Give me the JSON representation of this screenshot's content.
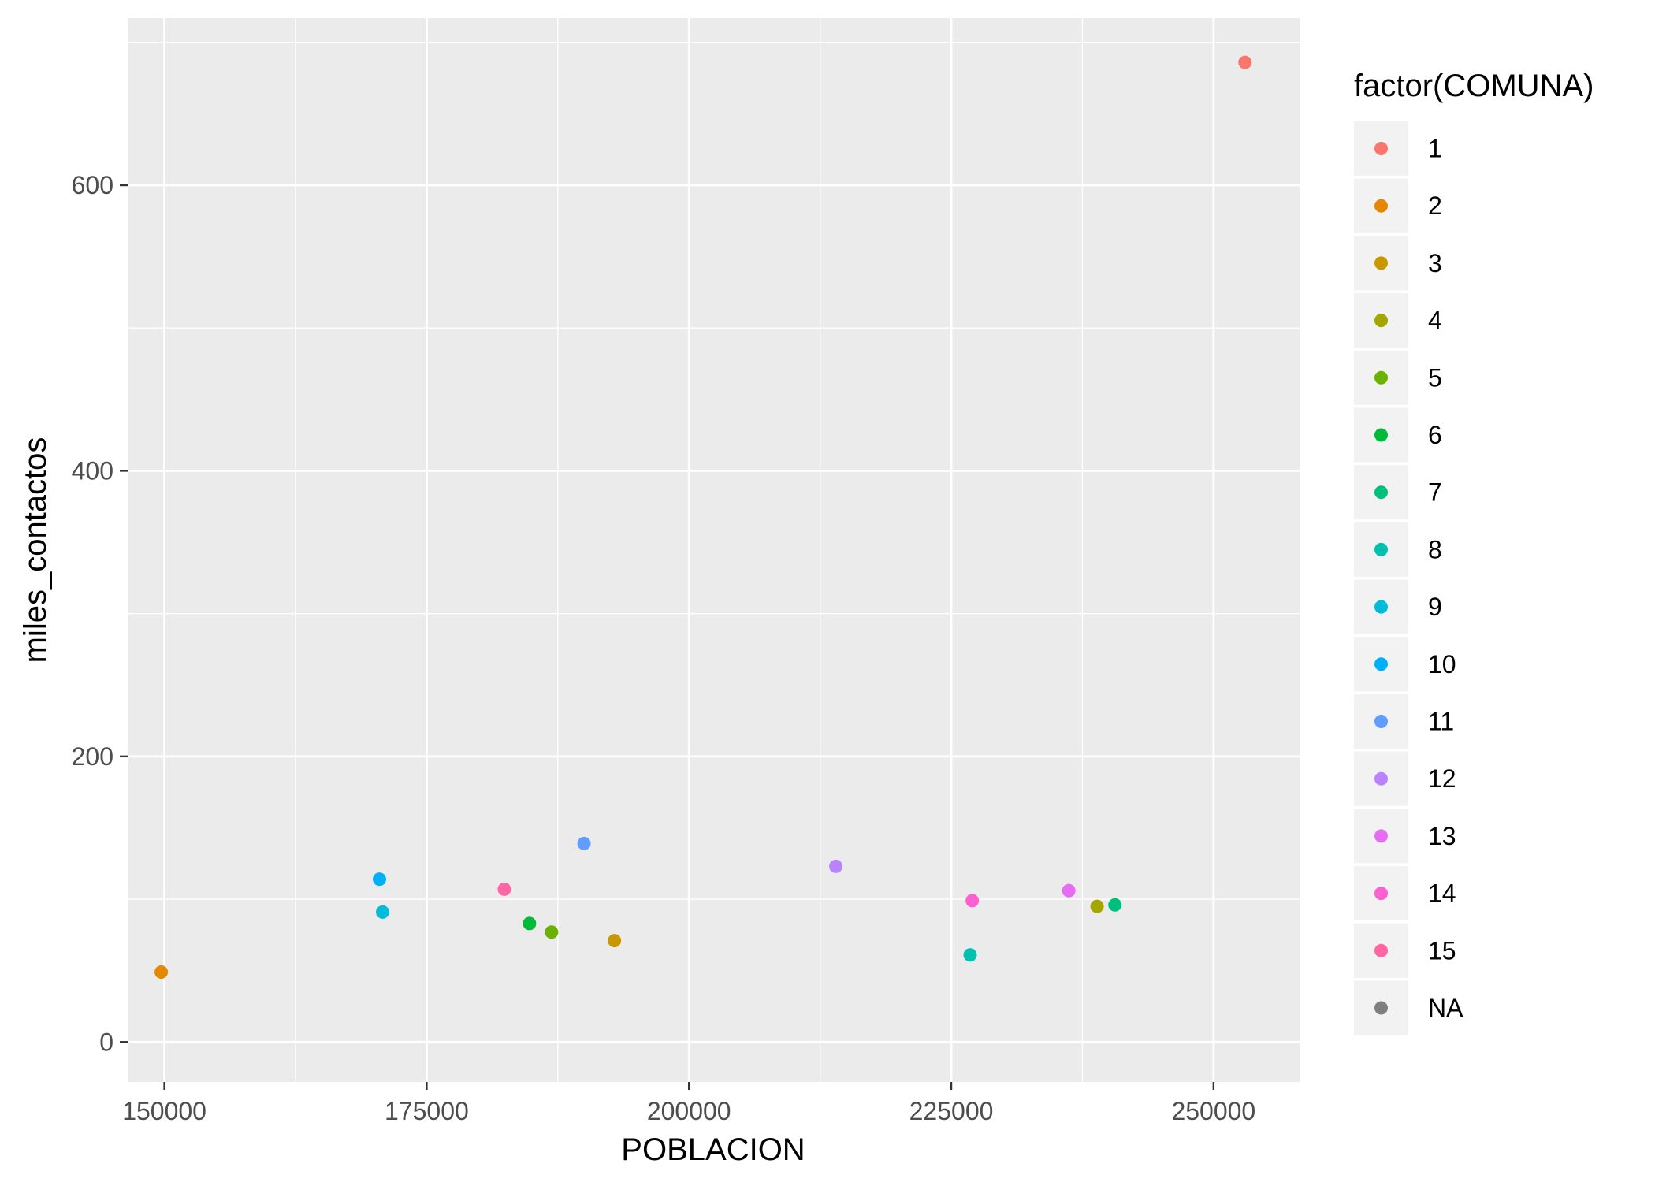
{
  "chart_data": {
    "type": "scatter",
    "title": "",
    "xlabel": "POBLACION",
    "ylabel": "miles_contactos",
    "xlim": [
      146500,
      258200
    ],
    "ylim": [
      -28,
      717
    ],
    "x_ticks": [
      150000,
      175000,
      200000,
      225000,
      250000
    ],
    "x_tick_labels": [
      "150000",
      "175000",
      "200000",
      "225000",
      "250000"
    ],
    "y_ticks": [
      0,
      200,
      400,
      600
    ],
    "y_tick_labels": [
      "0",
      "200",
      "400",
      "600"
    ],
    "grid": true,
    "legend_position": "right",
    "legend": {
      "title": "factor(COMUNA)",
      "entries": [
        {
          "label": "1",
          "color": "#F8766D"
        },
        {
          "label": "2",
          "color": "#E58700"
        },
        {
          "label": "3",
          "color": "#C99800"
        },
        {
          "label": "4",
          "color": "#A3A500"
        },
        {
          "label": "5",
          "color": "#6BB100"
        },
        {
          "label": "6",
          "color": "#00BA38"
        },
        {
          "label": "7",
          "color": "#00BF7D"
        },
        {
          "label": "8",
          "color": "#00C0AF"
        },
        {
          "label": "9",
          "color": "#00BCD8"
        },
        {
          "label": "10",
          "color": "#00B0F6"
        },
        {
          "label": "11",
          "color": "#619CFF"
        },
        {
          "label": "12",
          "color": "#B983FF"
        },
        {
          "label": "13",
          "color": "#E76BF3"
        },
        {
          "label": "14",
          "color": "#FD61D1"
        },
        {
          "label": "15",
          "color": "#FF67A4"
        },
        {
          "label": "NA",
          "color": "#7F7F7F"
        }
      ]
    },
    "points": [
      {
        "x": 253000,
        "y": 686,
        "group": "1"
      },
      {
        "x": 149700,
        "y": 49,
        "group": "2"
      },
      {
        "x": 192900,
        "y": 71,
        "group": "3"
      },
      {
        "x": 238900,
        "y": 95,
        "group": "4"
      },
      {
        "x": 186900,
        "y": 77,
        "group": "5"
      },
      {
        "x": 184800,
        "y": 83,
        "group": "6"
      },
      {
        "x": 240600,
        "y": 96,
        "group": "7"
      },
      {
        "x": 226800,
        "y": 61,
        "group": "8"
      },
      {
        "x": 170800,
        "y": 91,
        "group": "9"
      },
      {
        "x": 170500,
        "y": 114,
        "group": "10"
      },
      {
        "x": 190000,
        "y": 139,
        "group": "11"
      },
      {
        "x": 214000,
        "y": 123,
        "group": "12"
      },
      {
        "x": 236200,
        "y": 106,
        "group": "13"
      },
      {
        "x": 227000,
        "y": 99,
        "group": "14"
      },
      {
        "x": 182400,
        "y": 107,
        "group": "15"
      }
    ]
  }
}
